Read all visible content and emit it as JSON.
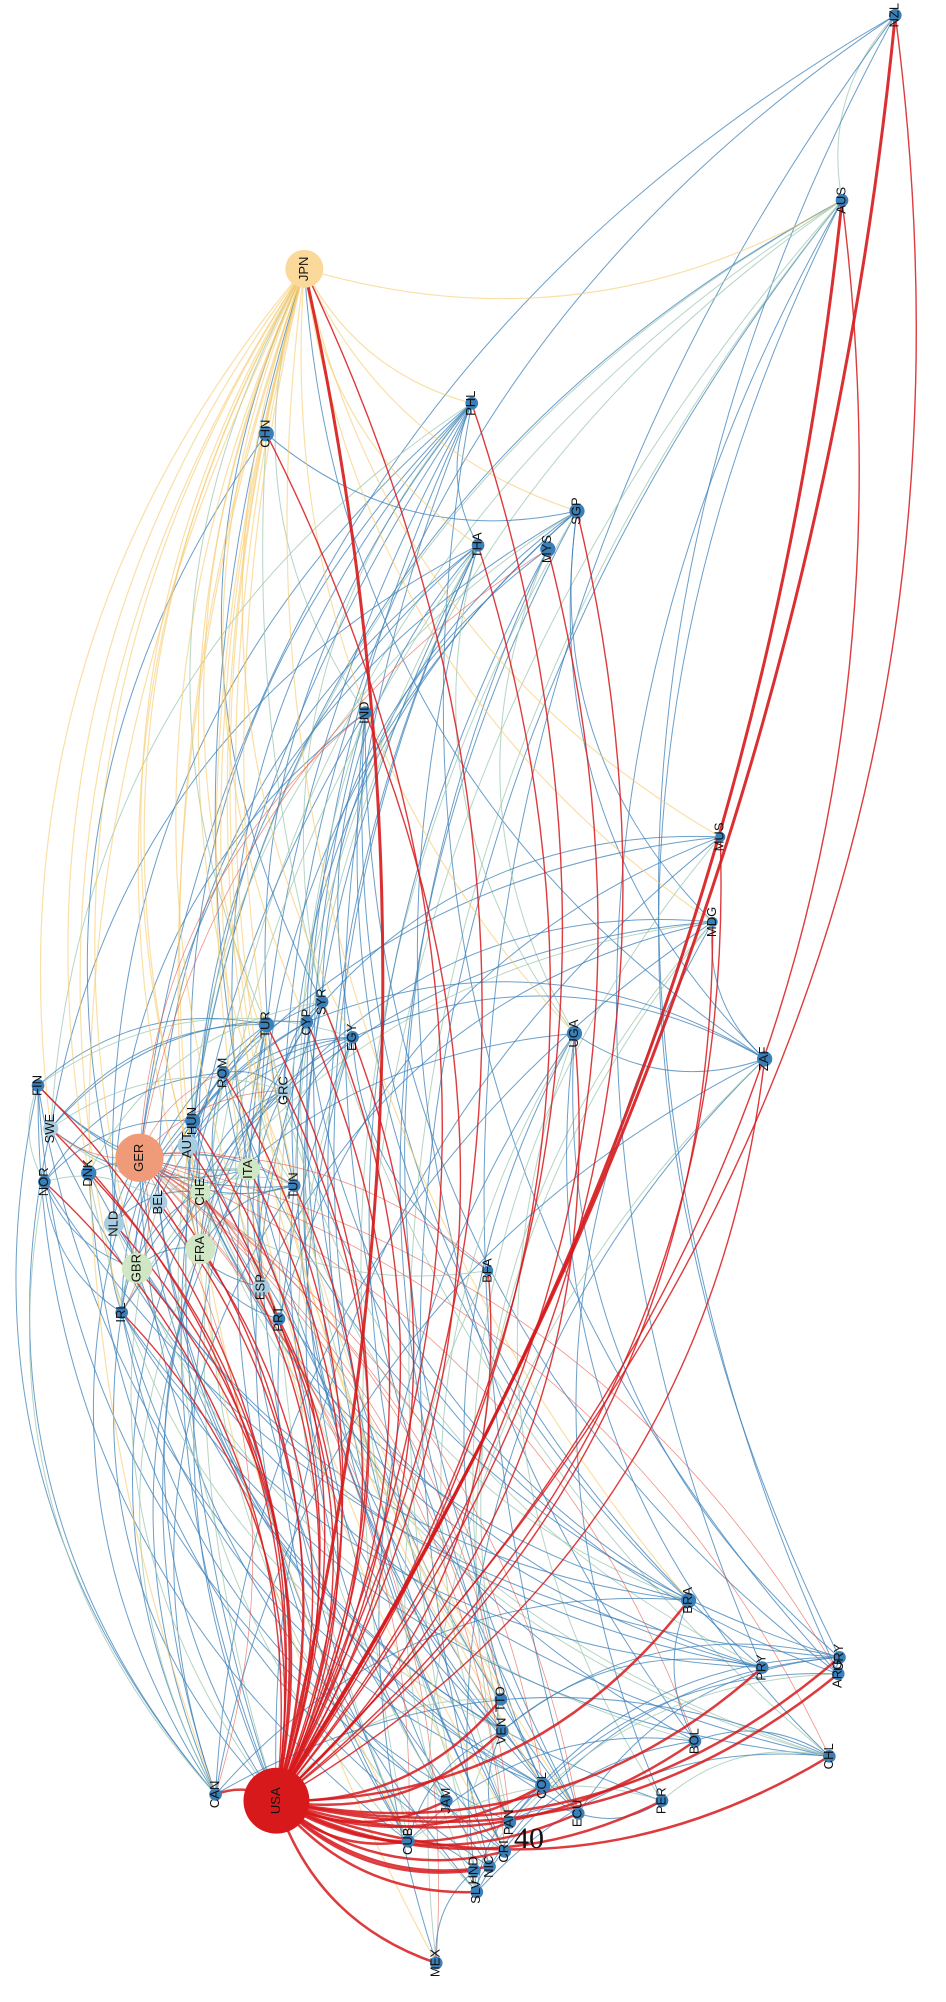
{
  "nodes": [
    {
      "label": "NZL"
    },
    {
      "label": "AUS"
    },
    {
      "label": "JPN"
    },
    {
      "label": "PHL"
    },
    {
      "label": "CHN"
    },
    {
      "label": "SGP"
    },
    {
      "label": "THA"
    },
    {
      "label": "MYS"
    },
    {
      "label": "IND"
    },
    {
      "label": "MUS"
    },
    {
      "label": "MDG"
    },
    {
      "label": "UGA"
    },
    {
      "label": "ZAF"
    },
    {
      "label": "EGY"
    },
    {
      "label": "SYR"
    },
    {
      "label": "CYP"
    },
    {
      "label": "TUR"
    },
    {
      "label": "GRC"
    },
    {
      "label": "ROM"
    },
    {
      "label": "FIN"
    },
    {
      "label": "SWE"
    },
    {
      "label": "GER"
    },
    {
      "label": "AUT"
    },
    {
      "label": "HUN"
    },
    {
      "label": "ITA"
    },
    {
      "label": "TUN"
    },
    {
      "label": "CHE"
    },
    {
      "label": "BEL"
    },
    {
      "label": "DNK"
    },
    {
      "label": "NOR"
    },
    {
      "label": "NLD"
    },
    {
      "label": "FRA"
    },
    {
      "label": "GBR"
    },
    {
      "label": "IRL"
    },
    {
      "label": "ESP"
    },
    {
      "label": "PRT"
    },
    {
      "label": "BFA"
    },
    {
      "label": "BRA"
    },
    {
      "label": "PRY"
    },
    {
      "label": "URY"
    },
    {
      "label": "ARG"
    },
    {
      "label": "CHL"
    },
    {
      "label": "BOL"
    },
    {
      "label": "TTO"
    },
    {
      "label": "VEN"
    },
    {
      "label": "COL"
    },
    {
      "label": "ECU"
    },
    {
      "label": "PER"
    },
    {
      "label": "PAN"
    },
    {
      "label": "CRI"
    },
    {
      "label": "NIC"
    },
    {
      "label": "HND"
    },
    {
      "label": "SLV"
    },
    {
      "label": "JAM"
    },
    {
      "label": "CUB"
    },
    {
      "label": "CAN"
    },
    {
      "label": "USA"
    },
    {
      "label": "MEX"
    }
  ],
  "annotation": "40"
}
